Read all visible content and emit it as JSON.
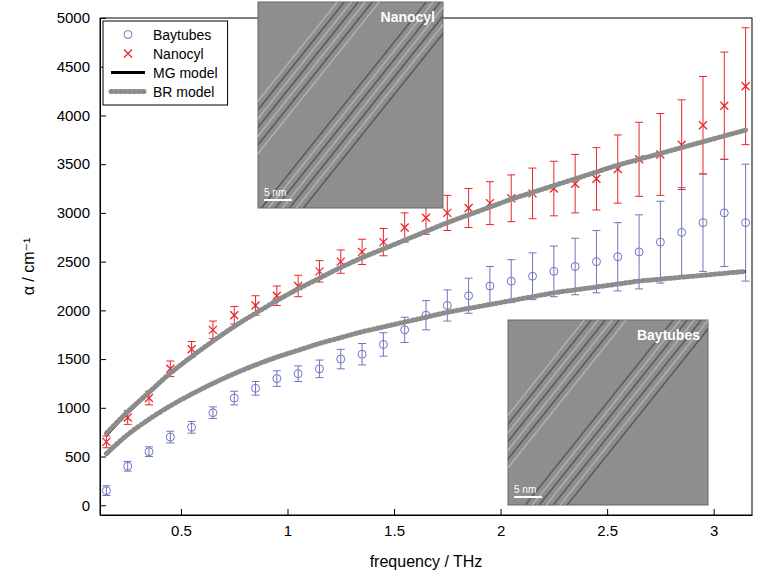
{
  "chart_data": {
    "type": "scatter",
    "x_label": "frequency / THz",
    "y_label": "α / cm⁻¹",
    "xlim": [
      0.12,
      3.18
    ],
    "xticks": [
      0.5,
      1,
      1.5,
      2,
      2.5,
      3
    ],
    "ylim": [
      -100,
      5000
    ],
    "yticks": [
      0,
      500,
      1000,
      1500,
      2000,
      2500,
      3000,
      3500,
      4000,
      4500,
      5000
    ],
    "legend": "upper left",
    "grid": false,
    "x": [
      0.15,
      0.25,
      0.35,
      0.45,
      0.55,
      0.65,
      0.75,
      0.85,
      0.95,
      1.05,
      1.15,
      1.25,
      1.35,
      1.45,
      1.55,
      1.65,
      1.75,
      1.85,
      1.95,
      2.05,
      2.15,
      2.25,
      2.35,
      2.45,
      2.55,
      2.65,
      2.75,
      2.85,
      2.95,
      3.05,
      3.15
    ],
    "series": [
      {
        "name": "Baytubes",
        "type": "scatter",
        "marker": "circle",
        "color": "#6f74c0",
        "values": [
          150,
          400,
          550,
          700,
          800,
          950,
          1100,
          1200,
          1300,
          1350,
          1400,
          1500,
          1550,
          1650,
          1800,
          1950,
          2050,
          2150,
          2250,
          2300,
          2350,
          2400,
          2450,
          2500,
          2550,
          2600,
          2700,
          2800,
          2900,
          3000,
          2900
        ],
        "errors": [
          50,
          50,
          50,
          60,
          60,
          60,
          70,
          70,
          80,
          80,
          90,
          100,
          110,
          120,
          130,
          150,
          160,
          180,
          200,
          220,
          240,
          260,
          290,
          320,
          350,
          380,
          420,
          460,
          500,
          550,
          600
        ]
      },
      {
        "name": "Nanocyl",
        "type": "scatter",
        "marker": "x",
        "color": "#e8262a",
        "values": [
          650,
          900,
          1100,
          1400,
          1600,
          1800,
          1950,
          2050,
          2150,
          2250,
          2400,
          2500,
          2600,
          2700,
          2850,
          2950,
          3000,
          3050,
          3100,
          3150,
          3200,
          3250,
          3300,
          3350,
          3450,
          3550,
          3600,
          3700,
          3900,
          4100,
          4300
        ],
        "errors": [
          60,
          70,
          70,
          80,
          80,
          90,
          90,
          100,
          100,
          110,
          110,
          120,
          130,
          140,
          150,
          170,
          180,
          200,
          220,
          240,
          260,
          280,
          300,
          320,
          350,
          380,
          420,
          460,
          500,
          550,
          600
        ]
      },
      {
        "name": "MG model",
        "type": "line",
        "line_style": "solid",
        "color": "#000000",
        "values": [
          720,
          950,
          1150,
          1350,
          1520,
          1680,
          1830,
          1970,
          2100,
          2220,
          2330,
          2440,
          2540,
          2630,
          2720,
          2810,
          2900,
          2980,
          3060,
          3140,
          3210,
          3280,
          3350,
          3420,
          3490,
          3550,
          3610,
          3670,
          3730,
          3790,
          3850
        ]
      },
      {
        "name": "BR model",
        "type": "line",
        "line_style": "dotted",
        "color": "#8c8c8c",
        "values": [
          740,
          960,
          1160,
          1355,
          1525,
          1685,
          1835,
          1970,
          2100,
          2220,
          2330,
          2440,
          2540,
          2630,
          2720,
          2810,
          2900,
          2980,
          3060,
          3140,
          3210,
          3280,
          3350,
          3420,
          3490,
          3550,
          3610,
          3670,
          3730,
          3790,
          3850
        ]
      },
      {
        "name": "MG model",
        "type": "line",
        "line_style": "solid",
        "color": "#000000",
        "values": [
          520,
          720,
          880,
          1020,
          1140,
          1250,
          1350,
          1440,
          1520,
          1590,
          1660,
          1720,
          1780,
          1830,
          1880,
          1930,
          1980,
          2020,
          2060,
          2100,
          2140,
          2180,
          2210,
          2240,
          2270,
          2300,
          2320,
          2340,
          2360,
          2380,
          2400
        ]
      },
      {
        "name": "BR model",
        "type": "line",
        "line_style": "dotted",
        "color": "#8c8c8c",
        "values": [
          530,
          725,
          882,
          1020,
          1140,
          1250,
          1350,
          1440,
          1520,
          1590,
          1660,
          1720,
          1780,
          1830,
          1880,
          1930,
          1980,
          2020,
          2060,
          2100,
          2140,
          2180,
          2210,
          2240,
          2270,
          2300,
          2320,
          2340,
          2360,
          2380,
          2400
        ]
      }
    ],
    "insets": [
      {
        "label": "Nanocyl",
        "scale_bar": "5 nm"
      },
      {
        "label": "Baytubes",
        "scale_bar": "5 nm"
      }
    ]
  }
}
